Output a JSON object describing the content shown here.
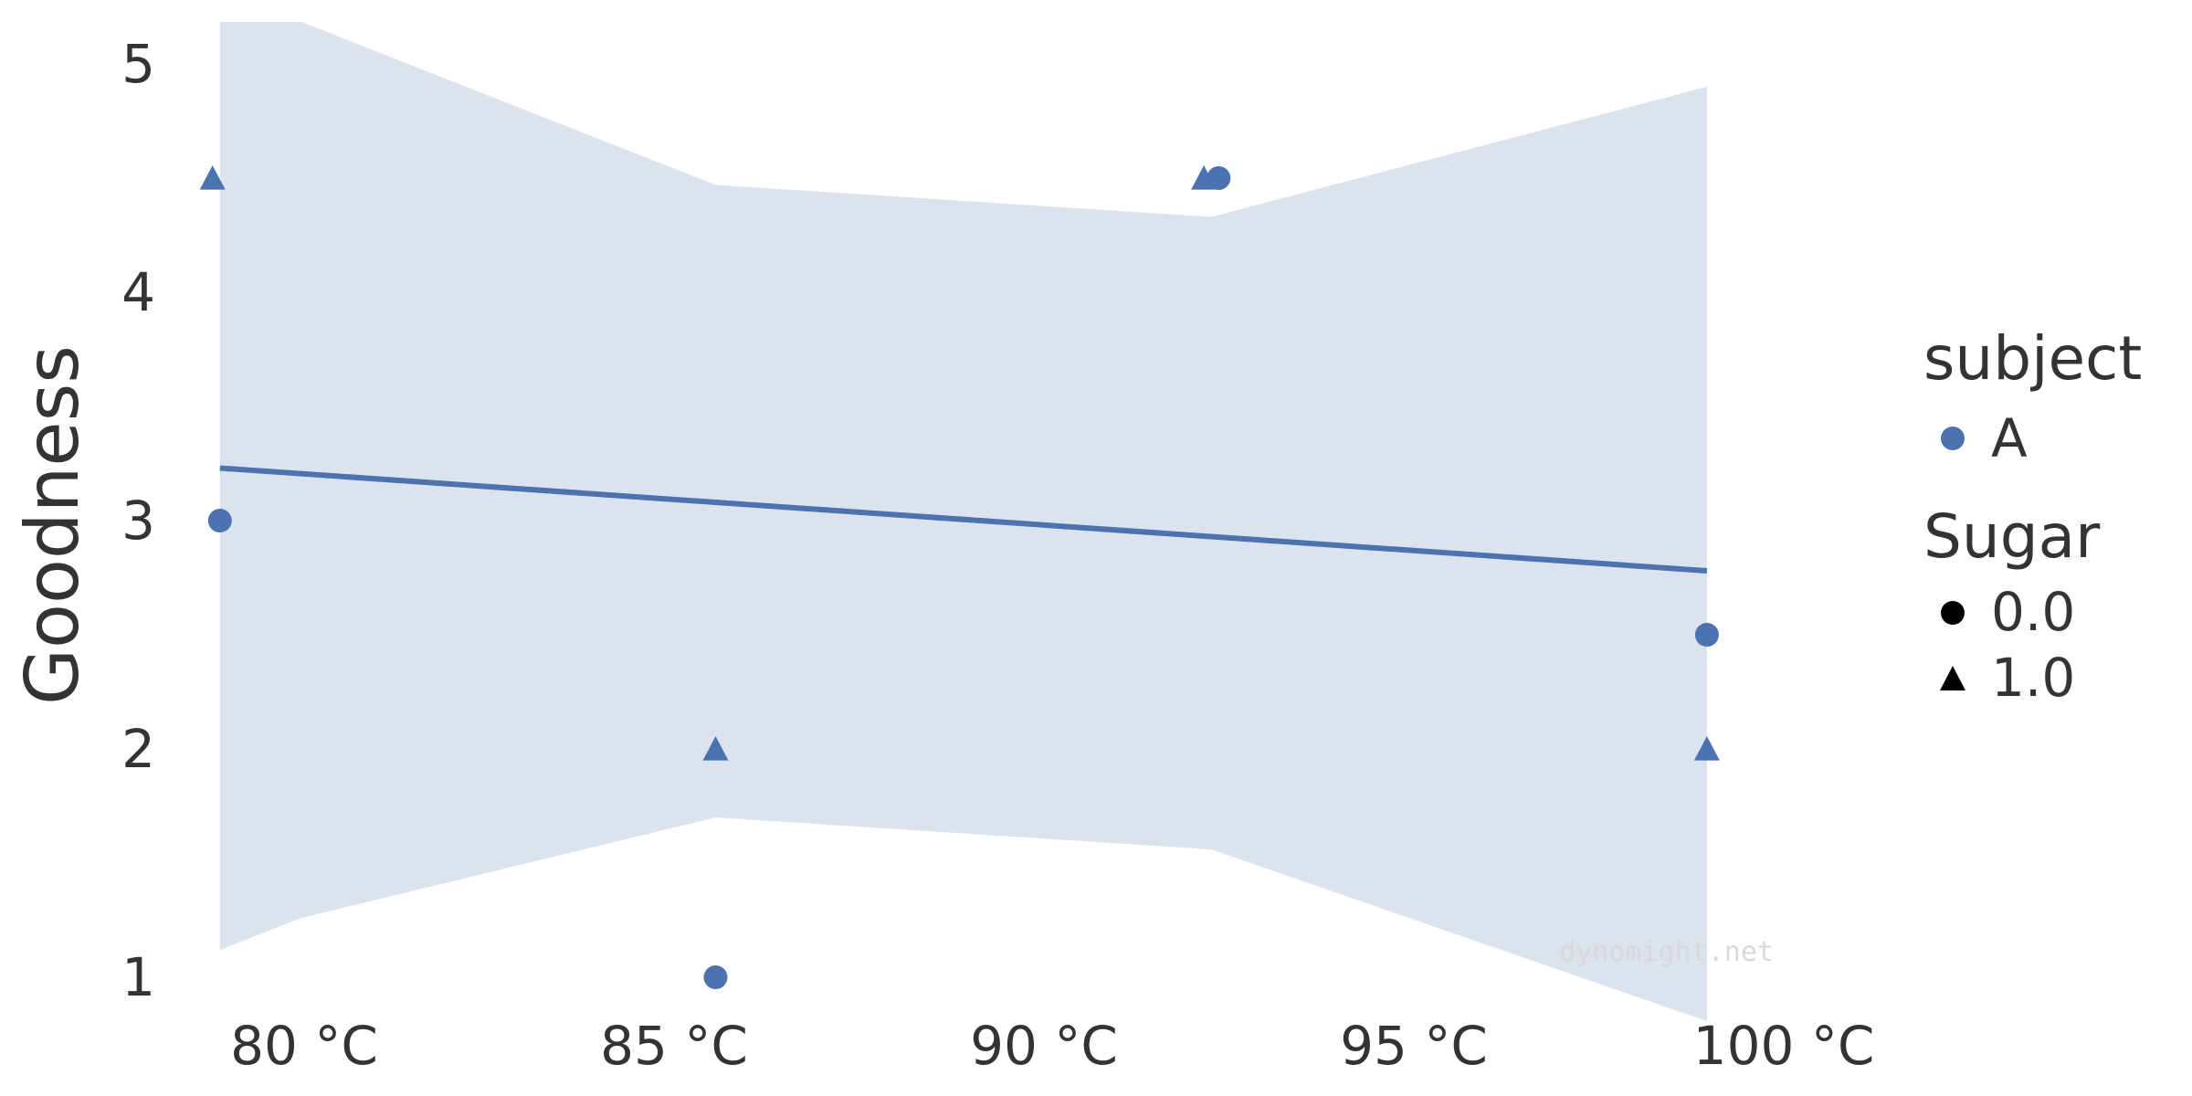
{
  "chart_data": {
    "type": "scatter",
    "ylabel": "Goodness",
    "xlabel": "",
    "x_ticks": [
      {
        "value": 80,
        "label": "80 °C"
      },
      {
        "value": 85,
        "label": "85 °C"
      },
      {
        "value": 90,
        "label": "90 °C"
      },
      {
        "value": 95,
        "label": "95 °C"
      },
      {
        "value": 100,
        "label": "100 °C"
      }
    ],
    "y_ticks": [
      {
        "value": 1,
        "label": "1"
      },
      {
        "value": 2,
        "label": "2"
      },
      {
        "value": 3,
        "label": "3"
      },
      {
        "value": 4,
        "label": "4"
      },
      {
        "value": 5,
        "label": "5"
      }
    ],
    "xlim": [
      77.3,
      102.8
    ],
    "ylim": [
      0.8,
      5.25
    ],
    "grid": false,
    "series": [
      {
        "name": "A",
        "color": "#4c72b0",
        "points": [
          {
            "x": 79.8,
            "y": 3.0,
            "sugar": "0.0"
          },
          {
            "x": 79.7,
            "y": 4.5,
            "sugar": "1.0"
          },
          {
            "x": 86.5,
            "y": 1.0,
            "sugar": "0.0"
          },
          {
            "x": 86.5,
            "y": 2.0,
            "sugar": "1.0"
          },
          {
            "x": 93.3,
            "y": 4.5,
            "sugar": "0.0"
          },
          {
            "x": 93.1,
            "y": 4.5,
            "sugar": "1.0"
          },
          {
            "x": 99.9,
            "y": 2.5,
            "sugar": "0.0"
          },
          {
            "x": 99.9,
            "y": 2.0,
            "sugar": "1.0"
          }
        ],
        "regression": {
          "x": [
            79.8,
            99.9
          ],
          "y": [
            3.23,
            2.78
          ]
        },
        "confidence_band": {
          "x": [
            79.8,
            80.9,
            86.5,
            93.2,
            99.9
          ],
          "upper": [
            5.2,
            5.2,
            4.47,
            4.33,
            4.9
          ],
          "lower": [
            1.12,
            1.26,
            1.7,
            1.56,
            0.8
          ]
        }
      }
    ],
    "legend": {
      "position": "right",
      "groups": [
        {
          "title": "subject",
          "entries": [
            {
              "label": "A",
              "marker": "circle",
              "color": "#4c72b0"
            }
          ]
        },
        {
          "title": "Sugar",
          "entries": [
            {
              "label": "0.0",
              "marker": "circle",
              "color": "#000000"
            },
            {
              "label": "1.0",
              "marker": "triangle",
              "color": "#000000"
            }
          ]
        }
      ]
    },
    "watermark": "dynomight.net",
    "band_color": "#dbe3ee"
  }
}
